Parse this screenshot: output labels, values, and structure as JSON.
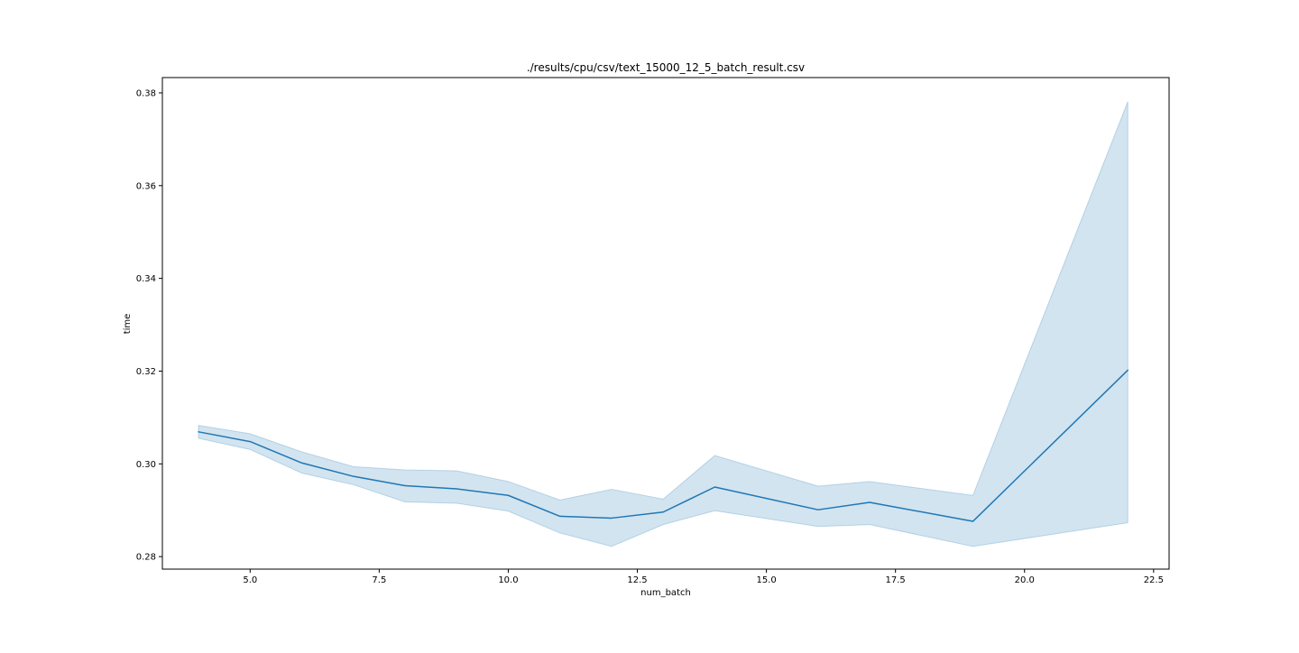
{
  "chart_data": {
    "type": "line",
    "title": "./results/cpu/csv/text_15000_12_5_batch_result.csv",
    "xlabel": "num_batch",
    "ylabel": "time",
    "xlim": [
      3.3,
      22.8
    ],
    "ylim": [
      0.2773,
      0.3833
    ],
    "xticks": [
      5.0,
      7.5,
      10.0,
      12.5,
      15.0,
      17.5,
      20.0,
      22.5
    ],
    "xtick_labels": [
      "5.0",
      "7.5",
      "10.0",
      "12.5",
      "15.0",
      "17.5",
      "20.0",
      "22.5"
    ],
    "yticks": [
      0.28,
      0.3,
      0.32,
      0.34,
      0.36,
      0.38
    ],
    "ytick_labels": [
      "0.28",
      "0.30",
      "0.32",
      "0.34",
      "0.36",
      "0.38"
    ],
    "grid": false,
    "colors": {
      "line": "#1f77b4",
      "band": "#1f77b4"
    },
    "series": [
      {
        "x": [
          4,
          5,
          6,
          7,
          8,
          9,
          10,
          11,
          12,
          13,
          14,
          16,
          17,
          19,
          22
        ],
        "y": [
          0.3069,
          0.3048,
          0.3002,
          0.2973,
          0.2953,
          0.2946,
          0.2932,
          0.2887,
          0.2883,
          0.2896,
          0.295,
          0.2901,
          0.2917,
          0.2876,
          0.3202
        ],
        "ci_lower": [
          0.3055,
          0.3031,
          0.298,
          0.2955,
          0.2918,
          0.2915,
          0.2898,
          0.2851,
          0.2822,
          0.2869,
          0.2899,
          0.2865,
          0.2869,
          0.2822,
          0.2873
        ],
        "ci_upper": [
          0.3083,
          0.3065,
          0.3026,
          0.2994,
          0.2987,
          0.2985,
          0.2962,
          0.2922,
          0.2945,
          0.2924,
          0.3018,
          0.2952,
          0.2962,
          0.2932,
          0.3781
        ]
      }
    ]
  }
}
